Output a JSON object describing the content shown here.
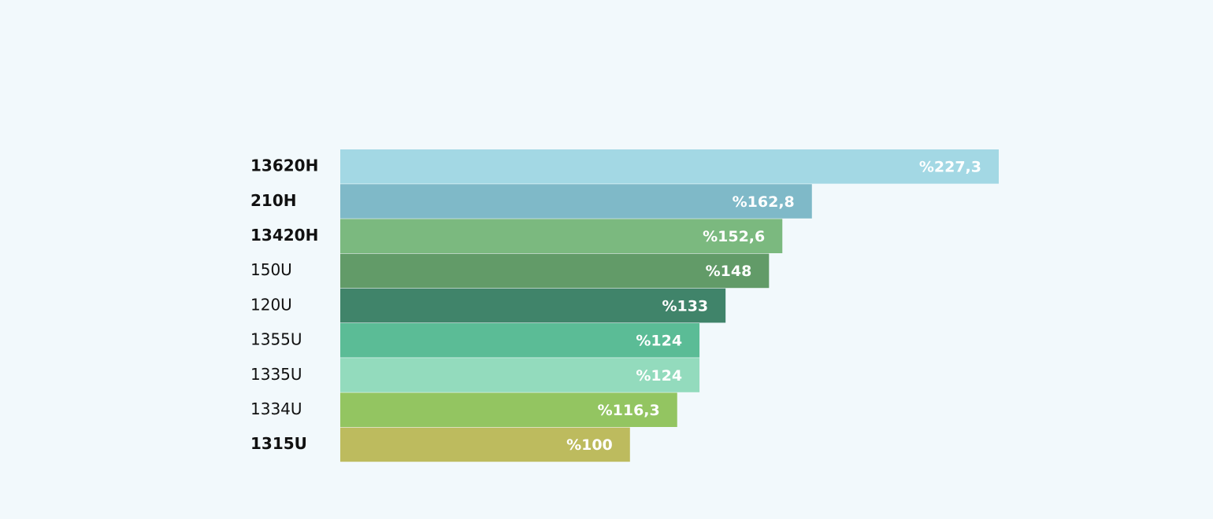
{
  "chart_data": {
    "type": "barh",
    "categories": [
      "13620H",
      "210H",
      "13420H",
      "150U",
      "120U",
      "1355U",
      "1335U",
      "1334U",
      "1315U"
    ],
    "values": [
      227.3,
      162.8,
      152.6,
      148,
      133,
      124,
      124,
      116.3,
      100
    ],
    "value_labels": [
      "%227,3",
      "%162,8",
      "%152,6",
      "%148",
      "%133",
      "%124",
      "%124",
      "%116,3",
      "%100"
    ],
    "colors": [
      "#a3d8e4",
      "#7fb9c8",
      "#7bb97f",
      "#629b68",
      "#40846a",
      "#5bbc96",
      "#93dbbd",
      "#93c561",
      "#bdbb5e"
    ],
    "bold": [
      true,
      true,
      true,
      false,
      false,
      false,
      false,
      false,
      true
    ]
  }
}
